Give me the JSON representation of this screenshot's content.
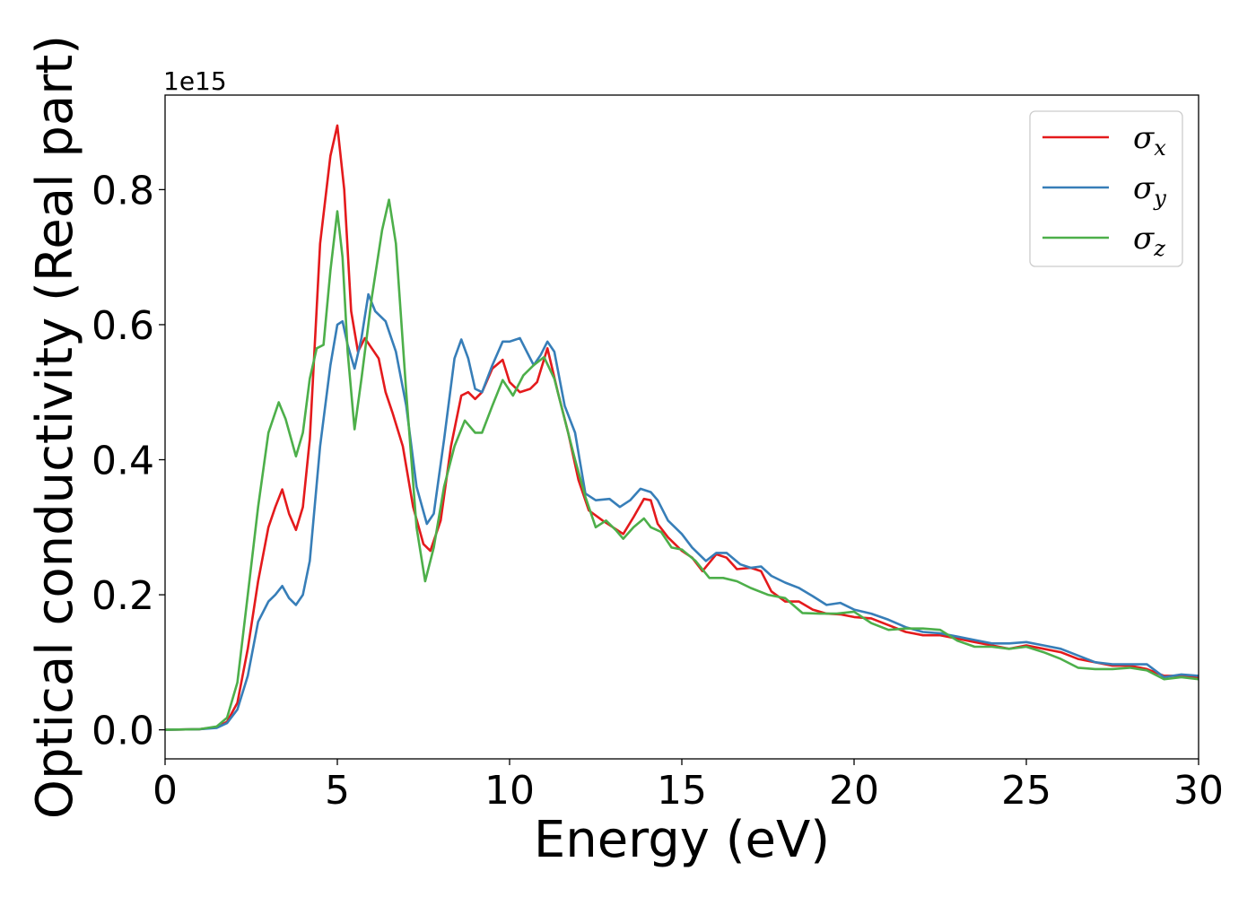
{
  "chart_data": {
    "type": "line",
    "title": "",
    "xlabel": "Energy (eV)",
    "ylabel": "Optical conductivity (Real part)",
    "y_offset_label": "1e15",
    "xlim": [
      0,
      30
    ],
    "ylim": [
      -0.043,
      0.94
    ],
    "x_ticks": [
      0,
      5,
      10,
      15,
      20,
      25,
      30
    ],
    "x_tick_labels": [
      "0",
      "5",
      "10",
      "15",
      "20",
      "25",
      "30"
    ],
    "y_ticks": [
      0.0,
      0.2,
      0.4,
      0.6,
      0.8
    ],
    "y_tick_labels": [
      "0.0",
      "0.2",
      "0.4",
      "0.6",
      "0.8"
    ],
    "grid": false,
    "legend_position": "top-right",
    "series": [
      {
        "name": "σ",
        "subscript": "x",
        "color": "#e41a1c",
        "points": [
          [
            0,
            0
          ],
          [
            1,
            0.001
          ],
          [
            1.5,
            0.004
          ],
          [
            1.8,
            0.012
          ],
          [
            2.1,
            0.04
          ],
          [
            2.4,
            0.12
          ],
          [
            2.7,
            0.22
          ],
          [
            3.0,
            0.3
          ],
          [
            3.2,
            0.33
          ],
          [
            3.4,
            0.356
          ],
          [
            3.6,
            0.32
          ],
          [
            3.8,
            0.296
          ],
          [
            4.0,
            0.33
          ],
          [
            4.2,
            0.43
          ],
          [
            4.5,
            0.72
          ],
          [
            4.8,
            0.85
          ],
          [
            5.0,
            0.895
          ],
          [
            5.2,
            0.8
          ],
          [
            5.4,
            0.62
          ],
          [
            5.6,
            0.56
          ],
          [
            5.8,
            0.58
          ],
          [
            6.0,
            0.565
          ],
          [
            6.2,
            0.55
          ],
          [
            6.4,
            0.5
          ],
          [
            6.6,
            0.47
          ],
          [
            6.9,
            0.42
          ],
          [
            7.2,
            0.33
          ],
          [
            7.5,
            0.275
          ],
          [
            7.7,
            0.265
          ],
          [
            8.0,
            0.31
          ],
          [
            8.3,
            0.42
          ],
          [
            8.6,
            0.495
          ],
          [
            8.8,
            0.5
          ],
          [
            9.0,
            0.49
          ],
          [
            9.2,
            0.5
          ],
          [
            9.5,
            0.535
          ],
          [
            9.8,
            0.548
          ],
          [
            10.0,
            0.515
          ],
          [
            10.3,
            0.5
          ],
          [
            10.6,
            0.505
          ],
          [
            10.8,
            0.515
          ],
          [
            11.1,
            0.565
          ],
          [
            11.4,
            0.5
          ],
          [
            11.7,
            0.44
          ],
          [
            12.0,
            0.37
          ],
          [
            12.3,
            0.325
          ],
          [
            12.7,
            0.31
          ],
          [
            13.0,
            0.3
          ],
          [
            13.3,
            0.29
          ],
          [
            13.6,
            0.315
          ],
          [
            13.9,
            0.342
          ],
          [
            14.1,
            0.34
          ],
          [
            14.3,
            0.305
          ],
          [
            14.6,
            0.285
          ],
          [
            15.0,
            0.265
          ],
          [
            15.3,
            0.255
          ],
          [
            15.6,
            0.235
          ],
          [
            16.0,
            0.26
          ],
          [
            16.3,
            0.255
          ],
          [
            16.6,
            0.238
          ],
          [
            17.0,
            0.24
          ],
          [
            17.3,
            0.235
          ],
          [
            17.6,
            0.205
          ],
          [
            18.0,
            0.19
          ],
          [
            18.4,
            0.19
          ],
          [
            18.8,
            0.178
          ],
          [
            19.2,
            0.172
          ],
          [
            19.6,
            0.171
          ],
          [
            20,
            0.167
          ],
          [
            20.5,
            0.165
          ],
          [
            21,
            0.155
          ],
          [
            21.5,
            0.145
          ],
          [
            22,
            0.14
          ],
          [
            22.5,
            0.14
          ],
          [
            23,
            0.135
          ],
          [
            23.5,
            0.13
          ],
          [
            24,
            0.125
          ],
          [
            24.5,
            0.12
          ],
          [
            25,
            0.125
          ],
          [
            25.5,
            0.12
          ],
          [
            26,
            0.115
          ],
          [
            26.5,
            0.105
          ],
          [
            27,
            0.1
          ],
          [
            27.5,
            0.095
          ],
          [
            28,
            0.095
          ],
          [
            28.5,
            0.09
          ],
          [
            29,
            0.08
          ],
          [
            29.5,
            0.08
          ],
          [
            30,
            0.078
          ]
        ]
      },
      {
        "name": "σ",
        "subscript": "y",
        "color": "#377eb8",
        "points": [
          [
            0,
            0
          ],
          [
            1,
            0.001
          ],
          [
            1.5,
            0.003
          ],
          [
            1.8,
            0.01
          ],
          [
            2.1,
            0.03
          ],
          [
            2.4,
            0.08
          ],
          [
            2.7,
            0.16
          ],
          [
            3.0,
            0.19
          ],
          [
            3.2,
            0.2
          ],
          [
            3.4,
            0.213
          ],
          [
            3.6,
            0.195
          ],
          [
            3.8,
            0.185
          ],
          [
            4.0,
            0.2
          ],
          [
            4.2,
            0.25
          ],
          [
            4.5,
            0.42
          ],
          [
            4.8,
            0.54
          ],
          [
            5.0,
            0.6
          ],
          [
            5.15,
            0.605
          ],
          [
            5.3,
            0.57
          ],
          [
            5.5,
            0.535
          ],
          [
            5.7,
            0.58
          ],
          [
            5.9,
            0.645
          ],
          [
            6.1,
            0.62
          ],
          [
            6.4,
            0.605
          ],
          [
            6.7,
            0.56
          ],
          [
            7.0,
            0.48
          ],
          [
            7.3,
            0.36
          ],
          [
            7.6,
            0.305
          ],
          [
            7.8,
            0.32
          ],
          [
            8.1,
            0.43
          ],
          [
            8.4,
            0.55
          ],
          [
            8.6,
            0.578
          ],
          [
            8.8,
            0.55
          ],
          [
            9.0,
            0.505
          ],
          [
            9.2,
            0.5
          ],
          [
            9.5,
            0.54
          ],
          [
            9.8,
            0.575
          ],
          [
            10.0,
            0.575
          ],
          [
            10.3,
            0.58
          ],
          [
            10.5,
            0.56
          ],
          [
            10.7,
            0.54
          ],
          [
            10.9,
            0.555
          ],
          [
            11.1,
            0.575
          ],
          [
            11.3,
            0.56
          ],
          [
            11.6,
            0.48
          ],
          [
            11.9,
            0.44
          ],
          [
            12.2,
            0.35
          ],
          [
            12.5,
            0.34
          ],
          [
            12.9,
            0.342
          ],
          [
            13.2,
            0.33
          ],
          [
            13.5,
            0.34
          ],
          [
            13.8,
            0.357
          ],
          [
            14.1,
            0.352
          ],
          [
            14.3,
            0.34
          ],
          [
            14.6,
            0.31
          ],
          [
            15.0,
            0.29
          ],
          [
            15.3,
            0.27
          ],
          [
            15.7,
            0.25
          ],
          [
            16.0,
            0.262
          ],
          [
            16.3,
            0.262
          ],
          [
            16.7,
            0.245
          ],
          [
            17.0,
            0.24
          ],
          [
            17.3,
            0.242
          ],
          [
            17.6,
            0.228
          ],
          [
            18.0,
            0.218
          ],
          [
            18.4,
            0.21
          ],
          [
            18.8,
            0.198
          ],
          [
            19.2,
            0.185
          ],
          [
            19.6,
            0.188
          ],
          [
            20,
            0.178
          ],
          [
            20.5,
            0.172
          ],
          [
            21,
            0.163
          ],
          [
            21.5,
            0.152
          ],
          [
            22,
            0.145
          ],
          [
            22.5,
            0.143
          ],
          [
            23,
            0.138
          ],
          [
            23.5,
            0.133
          ],
          [
            24,
            0.128
          ],
          [
            24.5,
            0.128
          ],
          [
            25,
            0.13
          ],
          [
            25.5,
            0.125
          ],
          [
            26,
            0.12
          ],
          [
            26.5,
            0.11
          ],
          [
            27,
            0.1
          ],
          [
            27.5,
            0.097
          ],
          [
            28,
            0.097
          ],
          [
            28.5,
            0.097
          ],
          [
            29,
            0.078
          ],
          [
            29.5,
            0.082
          ],
          [
            30,
            0.08
          ]
        ]
      },
      {
        "name": "σ",
        "subscript": "z",
        "color": "#4daf4a",
        "points": [
          [
            0,
            0
          ],
          [
            1,
            0.001
          ],
          [
            1.5,
            0.005
          ],
          [
            1.8,
            0.018
          ],
          [
            2.1,
            0.07
          ],
          [
            2.4,
            0.2
          ],
          [
            2.7,
            0.33
          ],
          [
            3.0,
            0.44
          ],
          [
            3.3,
            0.485
          ],
          [
            3.5,
            0.46
          ],
          [
            3.8,
            0.405
          ],
          [
            4.0,
            0.44
          ],
          [
            4.2,
            0.52
          ],
          [
            4.4,
            0.565
          ],
          [
            4.6,
            0.57
          ],
          [
            4.8,
            0.68
          ],
          [
            5.0,
            0.768
          ],
          [
            5.15,
            0.7
          ],
          [
            5.3,
            0.56
          ],
          [
            5.5,
            0.445
          ],
          [
            5.7,
            0.52
          ],
          [
            6.0,
            0.64
          ],
          [
            6.3,
            0.74
          ],
          [
            6.5,
            0.785
          ],
          [
            6.7,
            0.72
          ],
          [
            7.0,
            0.5
          ],
          [
            7.3,
            0.3
          ],
          [
            7.55,
            0.22
          ],
          [
            7.8,
            0.27
          ],
          [
            8.1,
            0.36
          ],
          [
            8.4,
            0.42
          ],
          [
            8.7,
            0.458
          ],
          [
            9.0,
            0.44
          ],
          [
            9.2,
            0.44
          ],
          [
            9.5,
            0.48
          ],
          [
            9.8,
            0.518
          ],
          [
            10.1,
            0.495
          ],
          [
            10.4,
            0.525
          ],
          [
            10.7,
            0.54
          ],
          [
            11.0,
            0.552
          ],
          [
            11.3,
            0.52
          ],
          [
            11.6,
            0.46
          ],
          [
            11.9,
            0.4
          ],
          [
            12.2,
            0.345
          ],
          [
            12.5,
            0.3
          ],
          [
            12.8,
            0.31
          ],
          [
            13.1,
            0.295
          ],
          [
            13.3,
            0.283
          ],
          [
            13.6,
            0.3
          ],
          [
            13.9,
            0.313
          ],
          [
            14.1,
            0.3
          ],
          [
            14.4,
            0.293
          ],
          [
            14.7,
            0.27
          ],
          [
            15.0,
            0.267
          ],
          [
            15.4,
            0.25
          ],
          [
            15.8,
            0.225
          ],
          [
            16.2,
            0.225
          ],
          [
            16.6,
            0.22
          ],
          [
            17.0,
            0.21
          ],
          [
            17.5,
            0.2
          ],
          [
            18.0,
            0.195
          ],
          [
            18.5,
            0.173
          ],
          [
            19.0,
            0.172
          ],
          [
            19.5,
            0.172
          ],
          [
            20,
            0.175
          ],
          [
            20.5,
            0.158
          ],
          [
            21,
            0.148
          ],
          [
            21.5,
            0.15
          ],
          [
            22,
            0.15
          ],
          [
            22.5,
            0.148
          ],
          [
            23,
            0.132
          ],
          [
            23.5,
            0.123
          ],
          [
            24,
            0.123
          ],
          [
            24.5,
            0.12
          ],
          [
            25,
            0.123
          ],
          [
            25.5,
            0.115
          ],
          [
            26,
            0.105
          ],
          [
            26.5,
            0.092
          ],
          [
            27,
            0.09
          ],
          [
            27.5,
            0.09
          ],
          [
            28,
            0.092
          ],
          [
            28.5,
            0.088
          ],
          [
            29,
            0.075
          ],
          [
            29.5,
            0.078
          ],
          [
            30,
            0.075
          ]
        ]
      }
    ]
  }
}
